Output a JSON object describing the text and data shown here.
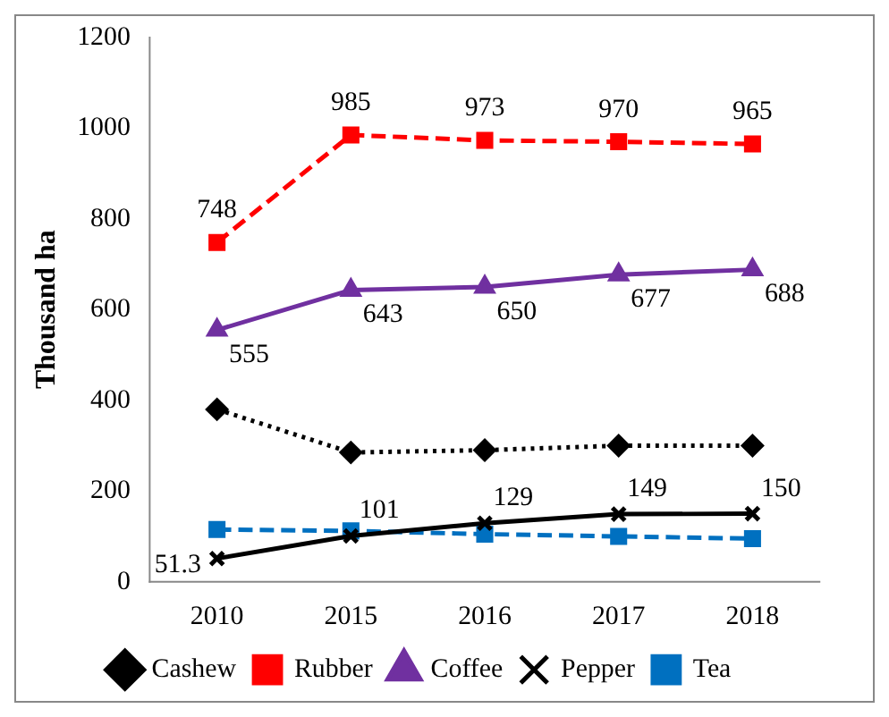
{
  "chart_data": {
    "type": "line",
    "ylabel": "Thousand ha",
    "categories": [
      "2010",
      "2015",
      "2016",
      "2017",
      "2018"
    ],
    "ylim": [
      0,
      1200
    ],
    "yticks": [
      0,
      200,
      400,
      600,
      800,
      1000,
      1200
    ],
    "grid": false,
    "legend": "bottom",
    "series": [
      {
        "name": "Cashew",
        "color": "#000000",
        "marker": "diamond",
        "line_style": "dotted",
        "values": [
          380,
          285,
          290,
          300,
          300
        ]
      },
      {
        "name": "Rubber",
        "color": "#ff0000",
        "marker": "square",
        "line_style": "dashed",
        "values": [
          748,
          985,
          973,
          970,
          965
        ],
        "value_labels": [
          "748",
          "985",
          "973",
          "970",
          "965"
        ]
      },
      {
        "name": "Coffee",
        "color": "#7030a0",
        "marker": "triangle",
        "line_style": "solid",
        "values": [
          555,
          643,
          650,
          677,
          688
        ],
        "value_labels": [
          "555",
          "643",
          "650",
          "677",
          "688"
        ]
      },
      {
        "name": "Pepper",
        "color": "#000000",
        "marker": "cross",
        "line_style": "solid",
        "values": [
          51.3,
          101,
          129,
          149,
          150
        ],
        "value_labels": [
          "51.3",
          "101",
          "129",
          "149",
          "150"
        ]
      },
      {
        "name": "Tea",
        "color": "#0070c0",
        "marker": "square",
        "line_style": "dashed",
        "values": [
          115,
          112,
          105,
          100,
          95
        ]
      }
    ]
  }
}
